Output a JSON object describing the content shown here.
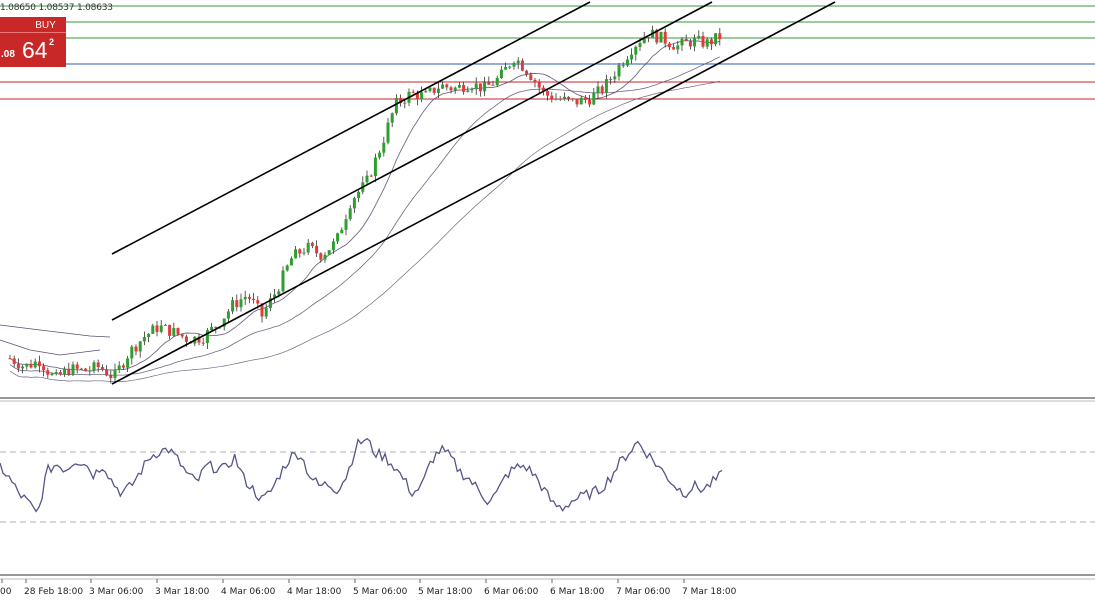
{
  "ohlc_readout": "1.08650 1.08537 1.08633",
  "trade_panel": {
    "lot_text": "0",
    "up_arrow": "▲",
    "buy_label": "BUY",
    "price_prefix": ".08",
    "price_big": "64",
    "price_sup": "2"
  },
  "time_axis": {
    "labels": [
      "00",
      "28 Feb 18:00",
      "3 Mar 06:00",
      "3 Mar 18:00",
      "4 Mar 06:00",
      "4 Mar 18:00",
      "5 Mar 06:00",
      "5 Mar 18:00",
      "6 Mar 06:00",
      "6 Mar 18:00",
      "7 Mar 06:00",
      "7 Mar 18:00"
    ]
  },
  "colors": {
    "bull": "#2e9e2e",
    "bear": "#e23a3a",
    "channel": "#000000",
    "ma": "#5a4e6e",
    "indicator": "#55558a",
    "support": "#cc2222",
    "resistance": "#3a9a3a",
    "mid": "#2a5db0",
    "buy_panel": "#c82828"
  },
  "chart_data": {
    "type": "candlestick",
    "description_free": true,
    "x": [
      "28 Feb 18:00",
      "3 Mar 06:00",
      "3 Mar 18:00",
      "4 Mar 06:00",
      "4 Mar 18:00",
      "5 Mar 06:00",
      "5 Mar 18:00",
      "6 Mar 06:00",
      "6 Mar 18:00",
      "7 Mar 06:00",
      "7 Mar 18:00"
    ],
    "close_path": [
      [
        0,
        1.048
      ],
      [
        0.3,
        1.0472
      ],
      [
        0.6,
        1.0478
      ],
      [
        0.9,
        1.046
      ],
      [
        1.2,
        1.047
      ],
      [
        1.5,
        1.0468
      ],
      [
        1.8,
        1.0472
      ],
      [
        2.1,
        1.0462
      ],
      [
        2.4,
        1.0485
      ],
      [
        2.7,
        1.05
      ],
      [
        3.0,
        1.051
      ],
      [
        3.3,
        1.0505
      ],
      [
        3.6,
        1.0498
      ],
      [
        3.9,
        1.05
      ],
      [
        4.2,
        1.0512
      ],
      [
        4.5,
        1.053
      ],
      [
        4.8,
        1.054
      ],
      [
        5.1,
        1.052
      ],
      [
        5.4,
        1.0545
      ],
      [
        5.7,
        1.0575
      ],
      [
        6.0,
        1.0585
      ],
      [
        6.3,
        1.0578
      ],
      [
        6.6,
        1.059
      ],
      [
        6.9,
        1.063
      ],
      [
        7.2,
        1.0645
      ],
      [
        7.5,
        1.068
      ],
      [
        7.8,
        1.072
      ],
      [
        8.1,
        1.073
      ],
      [
        8.4,
        1.0728
      ],
      [
        8.7,
        1.0738
      ],
      [
        9.0,
        1.0735
      ],
      [
        9.3,
        1.074
      ],
      [
        9.6,
        1.0735
      ],
      [
        9.9,
        1.0745
      ],
      [
        10.2,
        1.0765
      ],
      [
        10.5,
        1.075
      ],
      [
        10.8,
        1.073
      ],
      [
        11.1,
        1.0725
      ],
      [
        11.4,
        1.0722
      ],
      [
        11.7,
        1.0725
      ],
      [
        12.0,
        1.0735
      ],
      [
        12.3,
        1.0755
      ],
      [
        12.6,
        1.0775
      ],
      [
        12.9,
        1.0788
      ],
      [
        13.2,
        1.0782
      ],
      [
        13.5,
        1.0775
      ],
      [
        13.8,
        1.078
      ],
      [
        14.1,
        1.0778
      ],
      [
        14.4,
        1.0785
      ]
    ],
    "horizontal_levels": [
      1.081,
      1.0795,
      1.0785,
      1.0768,
      1.075,
      1.0735
    ],
    "indicator": {
      "levels": [
        70,
        30
      ],
      "values": [
        55,
        48,
        40,
        35,
        28,
        52,
        56,
        53,
        58,
        57,
        50,
        56,
        46,
        40,
        44,
        52,
        60,
        63,
        64,
        58,
        50,
        46,
        55,
        54,
        53,
        60,
        48,
        42,
        36,
        42,
        52,
        60,
        62,
        50,
        44,
        45,
        42,
        50,
        66,
        70,
        62,
        60,
        55,
        48,
        40,
        44,
        58,
        64,
        60,
        52,
        48,
        42,
        36,
        40,
        50,
        54,
        55,
        50,
        42,
        34,
        32,
        36,
        38,
        40,
        42,
        48,
        56,
        62,
        68,
        62,
        56,
        50,
        44,
        40,
        44,
        42,
        46,
        50
      ]
    }
  }
}
